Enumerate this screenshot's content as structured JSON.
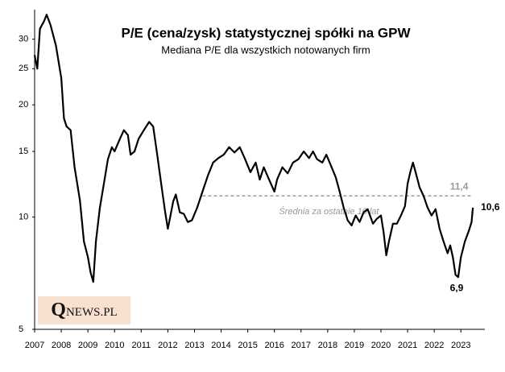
{
  "chart_data": {
    "type": "line",
    "title": "P/E (cena/zysk) statystycznej  spółki na GPW",
    "subtitle": "Mediana P/E dla wszystkich notowanych  firm",
    "x": [
      2007.0,
      2007.1,
      2007.2,
      2007.35,
      2007.45,
      2007.6,
      2007.8,
      2008.0,
      2008.1,
      2008.2,
      2008.35,
      2008.5,
      2008.7,
      2008.85,
      2009.0,
      2009.1,
      2009.2,
      2009.3,
      2009.45,
      2009.6,
      2009.75,
      2009.9,
      2010.0,
      2010.2,
      2010.35,
      2010.5,
      2010.6,
      2010.75,
      2010.9,
      2011.1,
      2011.3,
      2011.45,
      2011.6,
      2011.75,
      2011.9,
      2012.0,
      2012.1,
      2012.2,
      2012.3,
      2012.45,
      2012.6,
      2012.75,
      2012.9,
      2013.1,
      2013.3,
      2013.5,
      2013.7,
      2013.9,
      2014.1,
      2014.3,
      2014.5,
      2014.7,
      2014.9,
      2015.1,
      2015.3,
      2015.45,
      2015.6,
      2015.8,
      2016.0,
      2016.1,
      2016.3,
      2016.5,
      2016.7,
      2016.9,
      2017.1,
      2017.3,
      2017.45,
      2017.6,
      2017.8,
      2017.95,
      2018.15,
      2018.3,
      2018.45,
      2018.6,
      2018.75,
      2018.9,
      2019.05,
      2019.2,
      2019.35,
      2019.5,
      2019.7,
      2019.85,
      2020.0,
      2020.1,
      2020.2,
      2020.3,
      2020.45,
      2020.6,
      2020.75,
      2020.9,
      2021.0,
      2021.1,
      2021.2,
      2021.3,
      2021.45,
      2021.6,
      2021.75,
      2021.9,
      2022.05,
      2022.2,
      2022.35,
      2022.5,
      2022.6,
      2022.7,
      2022.8,
      2022.9,
      2023.0,
      2023.15,
      2023.3,
      2023.4,
      2023.45
    ],
    "values": [
      27.2,
      25,
      32,
      33.5,
      34.9,
      32.7,
      28.8,
      23.6,
      18.4,
      17.5,
      17.1,
      13.6,
      11.1,
      8.6,
      7.8,
      7.1,
      6.7,
      8.6,
      10.6,
      12.3,
      14.3,
      15.4,
      15,
      16.2,
      17.1,
      16.6,
      14.7,
      15,
      16.2,
      17.1,
      18,
      17.5,
      14.7,
      12.3,
      10.3,
      9.3,
      10.1,
      11,
      11.5,
      10.3,
      10.2,
      9.7,
      9.8,
      10.6,
      11.7,
      12.9,
      14,
      14.4,
      14.7,
      15.4,
      14.9,
      15.4,
      14.3,
      13.2,
      14,
      12.6,
      13.6,
      12.6,
      11.7,
      12.6,
      13.6,
      13.1,
      14,
      14.3,
      15,
      14.4,
      15,
      14.3,
      14,
      14.7,
      13.6,
      12.8,
      11.7,
      10.6,
      9.8,
      9.5,
      10.1,
      9.7,
      10.3,
      10.5,
      9.6,
      9.9,
      10.1,
      9.1,
      7.9,
      8.6,
      9.6,
      9.6,
      10.1,
      10.7,
      12.3,
      13.2,
      14,
      13.2,
      12,
      11.4,
      10.6,
      10.1,
      10.5,
      9.3,
      8.6,
      8,
      8.4,
      7.8,
      7,
      6.9,
      7.8,
      8.6,
      9.2,
      9.7,
      10.6
    ],
    "color": "#000000",
    "log_y": true,
    "grid": false,
    "xlim": [
      2007,
      2023.9
    ],
    "xticks": [
      2007,
      2008,
      2009,
      2010,
      2011,
      2012,
      2013,
      2014,
      2015,
      2016,
      2017,
      2018,
      2019,
      2020,
      2021,
      2022,
      2023
    ],
    "ylim": [
      5,
      36
    ],
    "yticks": [
      5,
      10,
      15,
      20,
      25,
      30
    ],
    "average": {
      "value": 11.4,
      "label": "11,4",
      "x": [
        2013.3,
        2023.4
      ],
      "text": "Średnia za ostatnie 10 lat",
      "color": "#999999"
    },
    "annotations": [
      {
        "x": 2023.45,
        "value": 10.6,
        "label": "10,6",
        "position": "right"
      },
      {
        "x": 2022.9,
        "value": 6.9,
        "label": "6,9",
        "position": "below"
      }
    ],
    "logo": "QNEWS.PL"
  }
}
